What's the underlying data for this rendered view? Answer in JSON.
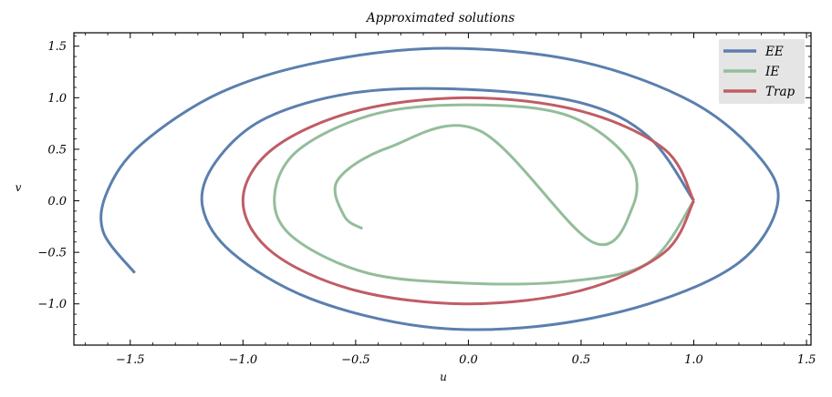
{
  "chart_data": {
    "type": "line",
    "title": "Approximated solutions",
    "xlabel": "u",
    "ylabel": "v",
    "xlim": [
      -1.75,
      1.52
    ],
    "ylim": [
      -1.4,
      1.63
    ],
    "xticks": [
      -1.5,
      -1.0,
      -0.5,
      0.0,
      0.5,
      1.0,
      1.5
    ],
    "xtick_labels": [
      "−1.5",
      "−1.0",
      "−0.5",
      "0.0",
      "0.5",
      "1.0",
      "1.5"
    ],
    "yticks": [
      -1.0,
      -0.5,
      0.0,
      0.5,
      1.0,
      1.5
    ],
    "ytick_labels": [
      "−1.0",
      "−0.5",
      "0.0",
      "0.5",
      "1.0",
      "1.5"
    ],
    "grid": false,
    "legend_position": "top-right",
    "series": [
      {
        "name": "EE",
        "color": "#5b7fae",
        "x": [
          1.0,
          0.8,
          0.5,
          0.0,
          -0.5,
          -0.9,
          -1.12,
          -1.18,
          -1.05,
          -0.7,
          -0.2,
          0.3,
          0.8,
          1.2,
          1.37,
          1.3,
          1.0,
          0.5,
          -0.1,
          -0.65,
          -1.1,
          -1.45,
          -1.6,
          -1.62,
          -1.48
        ],
        "y": [
          0.0,
          0.62,
          0.95,
          1.08,
          1.05,
          0.8,
          0.38,
          -0.05,
          -0.5,
          -0.95,
          -1.22,
          -1.22,
          -1.0,
          -0.6,
          -0.05,
          0.4,
          0.95,
          1.35,
          1.48,
          1.35,
          1.05,
          0.55,
          0.1,
          -0.3,
          -0.7
        ]
      },
      {
        "name": "IE",
        "color": "#94bd9b",
        "x": [
          1.0,
          0.8,
          0.45,
          0.0,
          -0.45,
          -0.78,
          -0.86,
          -0.75,
          -0.4,
          0.05,
          0.45,
          0.71,
          0.73,
          0.55,
          0.05,
          -0.35,
          -0.58,
          -0.55,
          -0.47
        ],
        "y": [
          0.0,
          -0.6,
          -0.78,
          -0.8,
          -0.7,
          -0.35,
          0.05,
          0.5,
          0.85,
          0.93,
          0.82,
          0.4,
          -0.05,
          -0.4,
          0.68,
          0.52,
          0.2,
          -0.15,
          -0.27
        ]
      },
      {
        "name": "Trap",
        "color": "#c05c65",
        "x": [
          1.0,
          0.87,
          0.5,
          0.0,
          -0.5,
          -0.87,
          -1.0,
          -0.87,
          -0.5,
          0.0,
          0.5,
          0.87,
          1.0
        ],
        "y": [
          0.0,
          0.5,
          0.87,
          1.0,
          0.87,
          0.5,
          0.0,
          -0.5,
          -0.87,
          -1.0,
          -0.87,
          -0.5,
          0.0
        ]
      }
    ]
  }
}
